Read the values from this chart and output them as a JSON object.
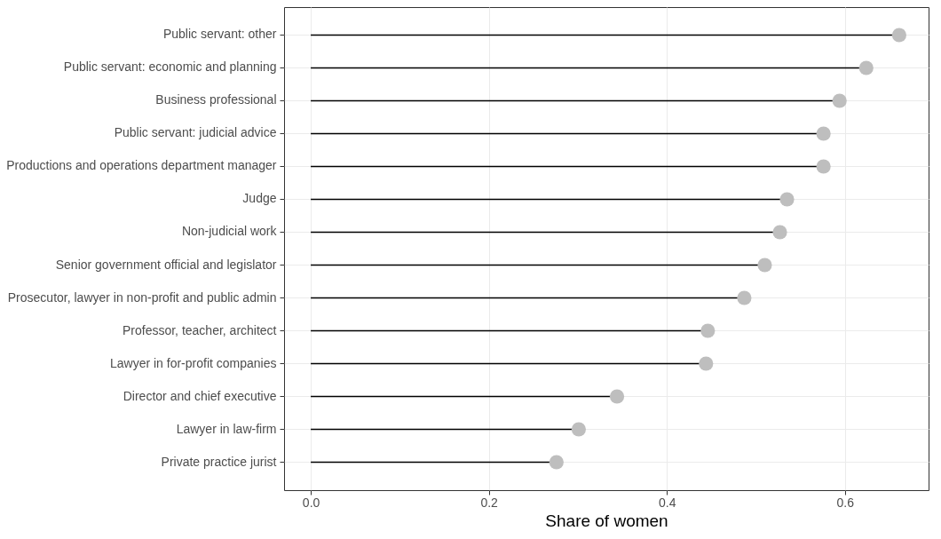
{
  "chart_data": {
    "type": "lollipop",
    "xlabel": "Share of women",
    "orientation": "horizontal",
    "categories": [
      "Public servant: other",
      "Public servant: economic and planning",
      "Business professional",
      "Public servant: judicial advice",
      "Productions and operations department manager",
      "Judge",
      "Non-judicial work",
      "Senior government official and legislator",
      "Prosecutor, lawyer in non-profit and public admin",
      "Professor, teacher, architect",
      "Lawyer in for-profit companies",
      "Director and chief executive",
      "Lawyer in law-firm",
      "Private practice jurist"
    ],
    "series": [
      {
        "color": "#bebebe",
        "values": [
          0.661,
          0.624,
          0.594,
          0.576,
          0.576,
          0.535,
          0.527,
          0.51,
          0.487,
          0.446,
          0.444,
          0.344,
          0.301,
          0.276
        ]
      }
    ],
    "xlim": [
      -0.03,
      0.694
    ],
    "xticks": [
      {
        "value": 0,
        "label": "0.0"
      },
      {
        "value": 0.2,
        "label": "0.2"
      },
      {
        "value": 0.4,
        "label": "0.4"
      },
      {
        "value": 0.6,
        "label": "0.6"
      }
    ],
    "grid": true,
    "marker": "circle"
  }
}
